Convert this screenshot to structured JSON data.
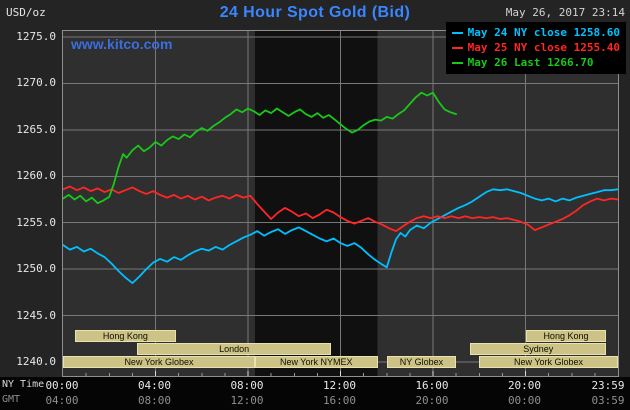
{
  "header": {
    "unit_label": "USD/oz",
    "title": "24 Hour Spot Gold (Bid)",
    "datetime": "May 26, 2017 23:14",
    "watermark": "www.kitco.com"
  },
  "footer": {
    "ny_time_label": "NY Time",
    "gmt_label": "GMT"
  },
  "chart_data": {
    "type": "line",
    "title": "24 Hour Spot Gold (Bid)",
    "ylabel": "USD/oz",
    "ylim": [
      1240,
      1275
    ],
    "xlim_hours": [
      0,
      24
    ],
    "grid": true,
    "legend_position": "top-right",
    "colors": {
      "band": "#101010",
      "grid": "#787878",
      "tick_minor": "#9a9a9a",
      "tick_major": "#dddddd"
    },
    "y_ticks": [
      {
        "v": 1275,
        "label": "1275.0"
      },
      {
        "v": 1270,
        "label": "1270.0"
      },
      {
        "v": 1265,
        "label": "1265.0"
      },
      {
        "v": 1260,
        "label": "1260.0"
      },
      {
        "v": 1255,
        "label": "1255.0"
      },
      {
        "v": 1250,
        "label": "1250.0"
      },
      {
        "v": 1245,
        "label": "1245.0"
      },
      {
        "v": 1240,
        "label": "1240.0"
      }
    ],
    "x_ticks": [
      {
        "h": 0,
        "ny": "00:00",
        "gmt": "04:00"
      },
      {
        "h": 4,
        "ny": "04:00",
        "gmt": "08:00"
      },
      {
        "h": 8,
        "ny": "08:00",
        "gmt": "12:00"
      },
      {
        "h": 12,
        "ny": "12:00",
        "gmt": "16:00"
      },
      {
        "h": 16,
        "ny": "16:00",
        "gmt": "20:00"
      },
      {
        "h": 20,
        "ny": "20:00",
        "gmt": "00:00"
      },
      {
        "h": 23.983,
        "ny": "23:59",
        "gmt": "03:59"
      }
    ],
    "grid_hours": [
      4,
      8,
      12,
      16,
      20
    ],
    "highlight_band_hours": [
      8.3,
      13.6
    ],
    "sessions": [
      {
        "row": 0,
        "label": "Hong Kong",
        "start": 0.5,
        "end": 4.9
      },
      {
        "row": 0,
        "label": "Hong Kong",
        "start": 20.0,
        "end": 23.5
      },
      {
        "row": 1,
        "label": "London",
        "start": 3.2,
        "end": 11.6
      },
      {
        "row": 1,
        "label": "Sydney",
        "start": 17.6,
        "end": 23.5
      },
      {
        "row": 2,
        "label": "New York Globex",
        "start": 0.0,
        "end": 8.3
      },
      {
        "row": 2,
        "label": "New York NYMEX",
        "start": 8.3,
        "end": 13.6
      },
      {
        "row": 2,
        "label": "NY Globex",
        "start": 14.0,
        "end": 17.0
      },
      {
        "row": 2,
        "label": "New York Globex",
        "start": 18.0,
        "end": 23.99
      }
    ],
    "series": [
      {
        "name": "May 24",
        "legend": "May 24 NY close 1258.60",
        "close": 1258.6,
        "color": "#00c0ff",
        "points": [
          [
            0,
            1252.6
          ],
          [
            0.3,
            1252.1
          ],
          [
            0.6,
            1252.4
          ],
          [
            0.9,
            1251.9
          ],
          [
            1.2,
            1252.2
          ],
          [
            1.5,
            1251.7
          ],
          [
            1.8,
            1251.3
          ],
          [
            2.1,
            1250.6
          ],
          [
            2.4,
            1249.8
          ],
          [
            2.7,
            1249.1
          ],
          [
            3,
            1248.5
          ],
          [
            3.3,
            1249.2
          ],
          [
            3.6,
            1250.0
          ],
          [
            3.9,
            1250.7
          ],
          [
            4.2,
            1251.1
          ],
          [
            4.5,
            1250.8
          ],
          [
            4.8,
            1251.3
          ],
          [
            5.1,
            1251.0
          ],
          [
            5.4,
            1251.5
          ],
          [
            5.7,
            1251.9
          ],
          [
            6,
            1252.2
          ],
          [
            6.3,
            1252.0
          ],
          [
            6.6,
            1252.4
          ],
          [
            6.9,
            1252.1
          ],
          [
            7.2,
            1252.6
          ],
          [
            7.5,
            1253.0
          ],
          [
            7.8,
            1253.4
          ],
          [
            8.1,
            1253.7
          ],
          [
            8.4,
            1254.1
          ],
          [
            8.7,
            1253.6
          ],
          [
            9,
            1254.0
          ],
          [
            9.3,
            1254.3
          ],
          [
            9.6,
            1253.8
          ],
          [
            9.9,
            1254.2
          ],
          [
            10.2,
            1254.5
          ],
          [
            10.5,
            1254.1
          ],
          [
            10.8,
            1253.7
          ],
          [
            11.1,
            1253.3
          ],
          [
            11.4,
            1253.0
          ],
          [
            11.7,
            1253.3
          ],
          [
            12,
            1252.8
          ],
          [
            12.3,
            1252.5
          ],
          [
            12.6,
            1252.8
          ],
          [
            12.9,
            1252.3
          ],
          [
            13.2,
            1251.6
          ],
          [
            13.5,
            1251.0
          ],
          [
            13.8,
            1250.5
          ],
          [
            14,
            1250.2
          ],
          [
            14.2,
            1251.8
          ],
          [
            14.4,
            1253.2
          ],
          [
            14.6,
            1253.9
          ],
          [
            14.8,
            1253.5
          ],
          [
            15,
            1254.2
          ],
          [
            15.3,
            1254.7
          ],
          [
            15.6,
            1254.4
          ],
          [
            15.9,
            1255.0
          ],
          [
            16.2,
            1255.4
          ],
          [
            16.5,
            1255.8
          ],
          [
            16.8,
            1256.2
          ],
          [
            17.1,
            1256.6
          ],
          [
            17.4,
            1256.9
          ],
          [
            17.7,
            1257.3
          ],
          [
            18,
            1257.8
          ],
          [
            18.3,
            1258.3
          ],
          [
            18.6,
            1258.6
          ],
          [
            18.9,
            1258.5
          ],
          [
            19.2,
            1258.6
          ],
          [
            19.5,
            1258.4
          ],
          [
            19.8,
            1258.2
          ],
          [
            20.1,
            1257.9
          ],
          [
            20.4,
            1257.6
          ],
          [
            20.7,
            1257.4
          ],
          [
            21,
            1257.6
          ],
          [
            21.3,
            1257.3
          ],
          [
            21.6,
            1257.6
          ],
          [
            21.9,
            1257.4
          ],
          [
            22.2,
            1257.7
          ],
          [
            22.5,
            1257.9
          ],
          [
            22.8,
            1258.1
          ],
          [
            23.1,
            1258.3
          ],
          [
            23.4,
            1258.5
          ],
          [
            23.7,
            1258.5
          ],
          [
            24,
            1258.6
          ]
        ]
      },
      {
        "name": "May 25",
        "legend": "May 25 NY close 1255.40",
        "close": 1255.4,
        "color": "#ff2626",
        "points": [
          [
            0,
            1258.6
          ],
          [
            0.3,
            1258.9
          ],
          [
            0.6,
            1258.5
          ],
          [
            0.9,
            1258.8
          ],
          [
            1.2,
            1258.4
          ],
          [
            1.5,
            1258.7
          ],
          [
            1.8,
            1258.3
          ],
          [
            2.1,
            1258.6
          ],
          [
            2.4,
            1258.2
          ],
          [
            2.7,
            1258.5
          ],
          [
            3,
            1258.8
          ],
          [
            3.3,
            1258.4
          ],
          [
            3.6,
            1258.1
          ],
          [
            3.9,
            1258.4
          ],
          [
            4.2,
            1258.0
          ],
          [
            4.5,
            1257.7
          ],
          [
            4.8,
            1258.0
          ],
          [
            5.1,
            1257.6
          ],
          [
            5.4,
            1257.9
          ],
          [
            5.7,
            1257.5
          ],
          [
            6,
            1257.8
          ],
          [
            6.3,
            1257.4
          ],
          [
            6.6,
            1257.7
          ],
          [
            6.9,
            1257.9
          ],
          [
            7.2,
            1257.6
          ],
          [
            7.5,
            1258.0
          ],
          [
            7.8,
            1257.7
          ],
          [
            8.1,
            1257.9
          ],
          [
            8.4,
            1257.0
          ],
          [
            8.7,
            1256.2
          ],
          [
            9,
            1255.4
          ],
          [
            9.3,
            1256.1
          ],
          [
            9.6,
            1256.6
          ],
          [
            9.9,
            1256.2
          ],
          [
            10.2,
            1255.7
          ],
          [
            10.5,
            1256.0
          ],
          [
            10.8,
            1255.5
          ],
          [
            11.1,
            1255.9
          ],
          [
            11.4,
            1256.4
          ],
          [
            11.7,
            1256.1
          ],
          [
            12,
            1255.6
          ],
          [
            12.3,
            1255.2
          ],
          [
            12.6,
            1254.9
          ],
          [
            12.9,
            1255.2
          ],
          [
            13.2,
            1255.5
          ],
          [
            13.5,
            1255.1
          ],
          [
            13.8,
            1254.8
          ],
          [
            14.1,
            1254.4
          ],
          [
            14.4,
            1254.1
          ],
          [
            14.7,
            1254.6
          ],
          [
            15,
            1255.1
          ],
          [
            15.3,
            1255.5
          ],
          [
            15.6,
            1255.7
          ],
          [
            15.9,
            1255.5
          ],
          [
            16.2,
            1255.7
          ],
          [
            16.5,
            1255.5
          ],
          [
            16.8,
            1255.7
          ],
          [
            17.1,
            1255.5
          ],
          [
            17.4,
            1255.7
          ],
          [
            17.7,
            1255.5
          ],
          [
            18,
            1255.6
          ],
          [
            18.3,
            1255.5
          ],
          [
            18.6,
            1255.6
          ],
          [
            18.9,
            1255.4
          ],
          [
            19.2,
            1255.5
          ],
          [
            19.5,
            1255.3
          ],
          [
            19.8,
            1255.1
          ],
          [
            20.1,
            1254.8
          ],
          [
            20.4,
            1254.2
          ],
          [
            20.7,
            1254.5
          ],
          [
            21,
            1254.8
          ],
          [
            21.3,
            1255.1
          ],
          [
            21.6,
            1255.4
          ],
          [
            21.9,
            1255.8
          ],
          [
            22.2,
            1256.3
          ],
          [
            22.5,
            1256.9
          ],
          [
            22.8,
            1257.3
          ],
          [
            23.1,
            1257.6
          ],
          [
            23.4,
            1257.4
          ],
          [
            23.7,
            1257.6
          ],
          [
            24,
            1257.5
          ]
        ]
      },
      {
        "name": "May 26",
        "legend": "May 26 Last 1266.70",
        "last": 1266.7,
        "color": "#19c819",
        "points": [
          [
            0,
            1257.6
          ],
          [
            0.25,
            1258.0
          ],
          [
            0.5,
            1257.5
          ],
          [
            0.75,
            1257.9
          ],
          [
            1,
            1257.3
          ],
          [
            1.25,
            1257.7
          ],
          [
            1.5,
            1257.1
          ],
          [
            1.75,
            1257.4
          ],
          [
            2,
            1257.8
          ],
          [
            2.2,
            1259.2
          ],
          [
            2.4,
            1261.0
          ],
          [
            2.6,
            1262.4
          ],
          [
            2.75,
            1262.0
          ],
          [
            3,
            1262.8
          ],
          [
            3.25,
            1263.3
          ],
          [
            3.5,
            1262.7
          ],
          [
            3.75,
            1263.1
          ],
          [
            4,
            1263.7
          ],
          [
            4.25,
            1263.3
          ],
          [
            4.5,
            1263.9
          ],
          [
            4.75,
            1264.3
          ],
          [
            5,
            1264.0
          ],
          [
            5.25,
            1264.5
          ],
          [
            5.5,
            1264.2
          ],
          [
            5.75,
            1264.8
          ],
          [
            6,
            1265.2
          ],
          [
            6.25,
            1264.9
          ],
          [
            6.5,
            1265.4
          ],
          [
            6.75,
            1265.8
          ],
          [
            7,
            1266.3
          ],
          [
            7.25,
            1266.7
          ],
          [
            7.5,
            1267.2
          ],
          [
            7.75,
            1266.9
          ],
          [
            8,
            1267.3
          ],
          [
            8.25,
            1267.0
          ],
          [
            8.5,
            1266.6
          ],
          [
            8.75,
            1267.1
          ],
          [
            9,
            1266.8
          ],
          [
            9.25,
            1267.3
          ],
          [
            9.5,
            1266.9
          ],
          [
            9.75,
            1266.5
          ],
          [
            10,
            1266.9
          ],
          [
            10.25,
            1267.2
          ],
          [
            10.5,
            1266.7
          ],
          [
            10.75,
            1266.4
          ],
          [
            11,
            1266.8
          ],
          [
            11.25,
            1266.3
          ],
          [
            11.5,
            1266.6
          ],
          [
            11.75,
            1266.1
          ],
          [
            12,
            1265.6
          ],
          [
            12.25,
            1265.1
          ],
          [
            12.5,
            1264.7
          ],
          [
            12.75,
            1265.0
          ],
          [
            13,
            1265.5
          ],
          [
            13.25,
            1265.9
          ],
          [
            13.5,
            1266.1
          ],
          [
            13.75,
            1266.0
          ],
          [
            14,
            1266.4
          ],
          [
            14.25,
            1266.2
          ],
          [
            14.5,
            1266.7
          ],
          [
            14.75,
            1267.1
          ],
          [
            15,
            1267.8
          ],
          [
            15.25,
            1268.5
          ],
          [
            15.5,
            1269.0
          ],
          [
            15.75,
            1268.7
          ],
          [
            16,
            1269.0
          ],
          [
            16.25,
            1268.0
          ],
          [
            16.5,
            1267.2
          ],
          [
            16.75,
            1266.9
          ],
          [
            17,
            1266.7
          ]
        ]
      }
    ]
  }
}
